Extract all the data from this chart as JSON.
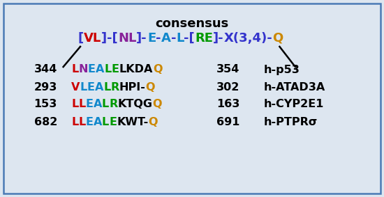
{
  "title": "consensus",
  "bg_color": "#dde6f0",
  "border_color": "#4a7ab5",
  "consensus_line": {
    "segments": [
      {
        "text": "[",
        "color": "#3333cc"
      },
      {
        "text": "VL",
        "color": "#cc0000"
      },
      {
        "text": "]",
        "color": "#3333cc"
      },
      {
        "text": "-[",
        "color": "#3333cc"
      },
      {
        "text": "NL",
        "color": "#882299"
      },
      {
        "text": "]-",
        "color": "#3333cc"
      },
      {
        "text": "E",
        "color": "#1188cc"
      },
      {
        "text": "-",
        "color": "#3333cc"
      },
      {
        "text": "A",
        "color": "#1188cc"
      },
      {
        "text": "-",
        "color": "#3333cc"
      },
      {
        "text": "L",
        "color": "#1188cc"
      },
      {
        "text": "-[",
        "color": "#3333cc"
      },
      {
        "text": "RE",
        "color": "#009900"
      },
      {
        "text": "]-",
        "color": "#3333cc"
      },
      {
        "text": "X(3,4)-",
        "color": "#3333cc"
      },
      {
        "text": "Q",
        "color": "#cc8800"
      }
    ]
  },
  "rows": [
    {
      "left_num": "344",
      "sequence": [
        {
          "text": "L",
          "color": "#cc0000"
        },
        {
          "text": "N",
          "color": "#882299"
        },
        {
          "text": "E",
          "color": "#1188cc"
        },
        {
          "text": "A",
          "color": "#1188cc"
        },
        {
          "text": "L",
          "color": "#009900"
        },
        {
          "text": "E",
          "color": "#009900"
        },
        {
          "text": "LKDA",
          "color": "#000000"
        },
        {
          "text": "Q",
          "color": "#cc8800"
        }
      ],
      "right_num": "354",
      "protein": "h-p53"
    },
    {
      "left_num": "293",
      "sequence": [
        {
          "text": "V",
          "color": "#cc0000"
        },
        {
          "text": "L",
          "color": "#1188cc"
        },
        {
          "text": "E",
          "color": "#1188cc"
        },
        {
          "text": "A",
          "color": "#1188cc"
        },
        {
          "text": "L",
          "color": "#009900"
        },
        {
          "text": "R",
          "color": "#009900"
        },
        {
          "text": "HPI-",
          "color": "#000000"
        },
        {
          "text": "Q",
          "color": "#cc8800"
        }
      ],
      "right_num": "302",
      "protein": "h-ATAD3A"
    },
    {
      "left_num": "153",
      "sequence": [
        {
          "text": "L",
          "color": "#cc0000"
        },
        {
          "text": "L",
          "color": "#cc0000"
        },
        {
          "text": "E",
          "color": "#1188cc"
        },
        {
          "text": "A",
          "color": "#1188cc"
        },
        {
          "text": "L",
          "color": "#009900"
        },
        {
          "text": "R",
          "color": "#009900"
        },
        {
          "text": "KTQG",
          "color": "#000000"
        },
        {
          "text": "Q",
          "color": "#cc8800"
        }
      ],
      "right_num": "163",
      "protein": "h-CYP2E1"
    },
    {
      "left_num": "682",
      "sequence": [
        {
          "text": "L",
          "color": "#cc0000"
        },
        {
          "text": "L",
          "color": "#cc0000"
        },
        {
          "text": "E",
          "color": "#1188cc"
        },
        {
          "text": "A",
          "color": "#1188cc"
        },
        {
          "text": "L",
          "color": "#009900"
        },
        {
          "text": "E",
          "color": "#009900"
        },
        {
          "text": "KWT-",
          "color": "#000000"
        },
        {
          "text": "Q",
          "color": "#cc8800"
        }
      ],
      "right_num": "691",
      "protein": "h-PTPRσ"
    }
  ],
  "consensus_fontsize": 13,
  "row_fontsize": 11.5,
  "title_fontsize": 13
}
